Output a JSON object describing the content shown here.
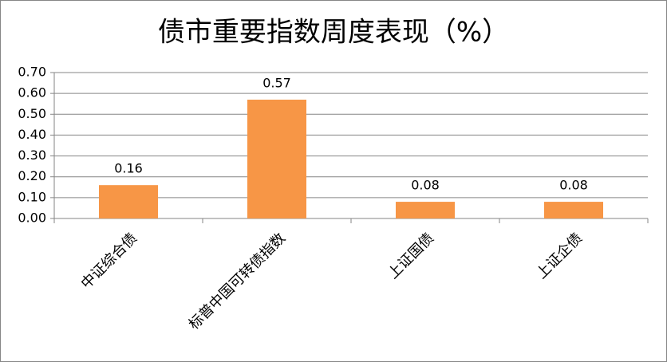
{
  "chart_data": {
    "type": "bar",
    "title": "债市重要指数周度表现（%）",
    "categories": [
      "中证综合债",
      "标普中国可转债指数",
      "上证国债",
      "上证企债"
    ],
    "values": [
      0.16,
      0.57,
      0.08,
      0.08
    ],
    "color": "#f79646",
    "ylim": [
      0,
      0.7
    ],
    "yticks": [
      {
        "value": 0,
        "label": "0.00"
      },
      {
        "value": 0.1,
        "label": "0.10"
      },
      {
        "value": 0.2,
        "label": "0.20"
      },
      {
        "value": 0.3,
        "label": "0.30"
      },
      {
        "value": 0.4,
        "label": "0.40"
      },
      {
        "value": 0.5,
        "label": "0.50"
      },
      {
        "value": 0.6,
        "label": "0.60"
      },
      {
        "value": 0.7,
        "label": "0.70"
      }
    ],
    "grid": true
  }
}
